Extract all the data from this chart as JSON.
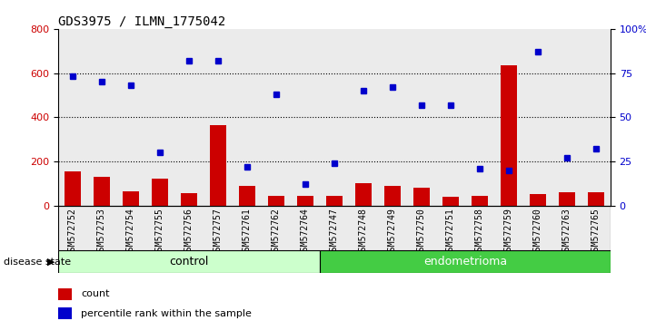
{
  "title": "GDS3975 / ILMN_1775042",
  "samples": [
    "GSM572752",
    "GSM572753",
    "GSM572754",
    "GSM572755",
    "GSM572756",
    "GSM572757",
    "GSM572761",
    "GSM572762",
    "GSM572764",
    "GSM572747",
    "GSM572748",
    "GSM572749",
    "GSM572750",
    "GSM572751",
    "GSM572758",
    "GSM572759",
    "GSM572760",
    "GSM572763",
    "GSM572765"
  ],
  "counts": [
    155,
    130,
    65,
    120,
    55,
    365,
    90,
    45,
    45,
    45,
    100,
    90,
    80,
    40,
    45,
    635,
    50,
    60,
    60
  ],
  "pct_vals": [
    73,
    70,
    68,
    30,
    82,
    82,
    22,
    63,
    12,
    24,
    65,
    67,
    57,
    57,
    21,
    20,
    87,
    27,
    32
  ],
  "n_control": 9,
  "n_endometrioma": 10,
  "control_label": "control",
  "endometrioma_label": "endometrioma",
  "disease_state_label": "disease state",
  "ylim_left": [
    0,
    800
  ],
  "ylim_right": [
    0,
    100
  ],
  "yticks_left": [
    0,
    200,
    400,
    600,
    800
  ],
  "yticks_right": [
    0,
    25,
    50,
    75,
    100
  ],
  "ytick_labels_right": [
    "0",
    "25",
    "50",
    "75",
    "100%"
  ],
  "bar_color": "#cc0000",
  "dot_color": "#0000cc",
  "control_bg_light": "#ccffcc",
  "control_bg_dark": "#aaeea0",
  "endometrioma_bg": "#44cc44",
  "legend_count_label": "count",
  "legend_pct_label": "percentile rank within the sample",
  "title_fontsize": 10,
  "tick_fontsize": 7,
  "bar_width": 0.55
}
